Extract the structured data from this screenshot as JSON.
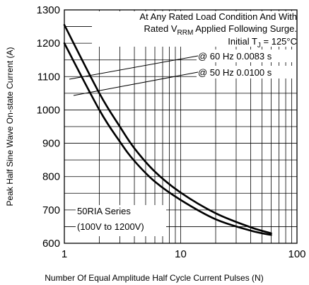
{
  "chart_data": {
    "type": "line",
    "xlabel": "Number Of Equal Amplitude Half Cycle Current Pulses (N)",
    "ylabel": "Peak Half Sine Wave On-state Current (A)",
    "x_scale": "log",
    "xlim": [
      1,
      100
    ],
    "ylim": [
      600,
      1300
    ],
    "grid": true,
    "x_ticks": [
      "1",
      "10",
      "100"
    ],
    "y_ticks": [
      "600",
      "700",
      "800",
      "900",
      "1000",
      "1100",
      "1200",
      "1300"
    ],
    "series": [
      {
        "name": "@ 60 Hz 0.0083 s",
        "x": [
          1,
          2,
          3,
          4,
          6,
          10,
          20,
          40,
          60
        ],
        "y": [
          1255,
          1050,
          950,
          885,
          815,
          752,
          690,
          648,
          630
        ]
      },
      {
        "name": "@ 50 Hz 0.0100 s",
        "x": [
          1,
          2,
          3,
          4,
          6,
          10,
          20,
          40,
          60
        ],
        "y": [
          1200,
          1000,
          905,
          847,
          785,
          730,
          672,
          638,
          625
        ]
      }
    ],
    "annotations": {
      "condition_line1": "At Any Rated Load Condition And With",
      "condition_line2_pre": "Rated V",
      "condition_line2_sub": "RRM",
      "condition_line2_post": " Applied Following Surge.",
      "condition_line3_pre": "Initial T",
      "condition_line3_sub": "J",
      "condition_line3_post": " = 125°C",
      "series_line1": "50RIA Series",
      "series_line2": "(100V to 1200V)"
    }
  }
}
